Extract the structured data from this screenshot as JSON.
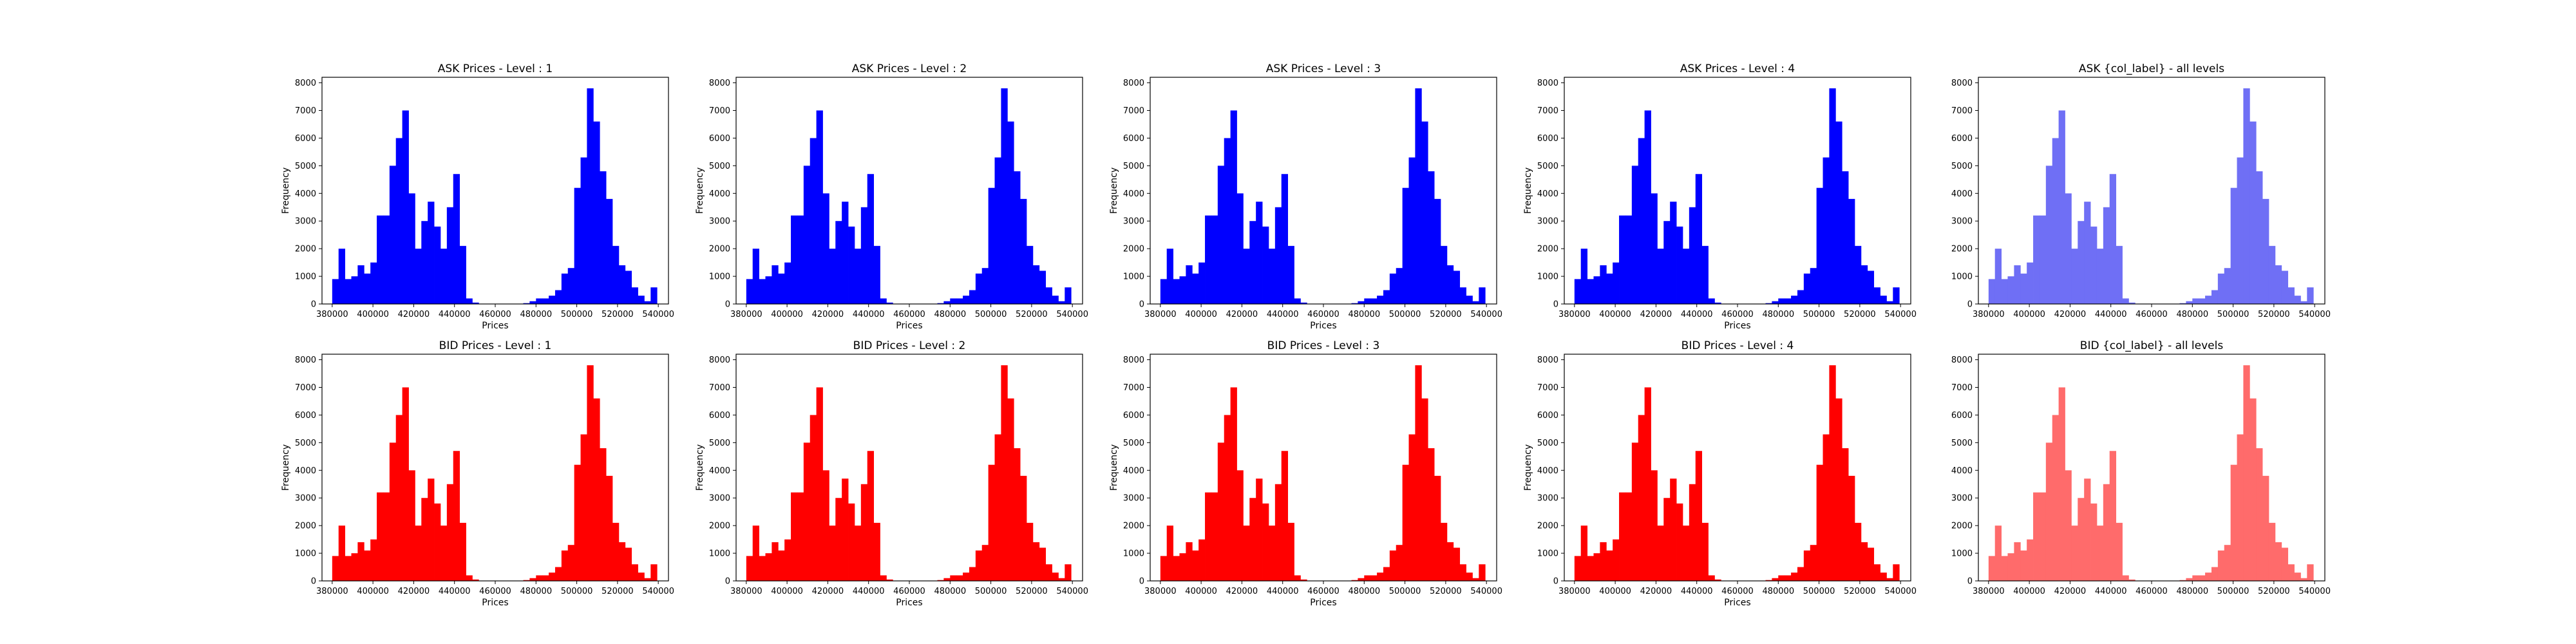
{
  "figure": {
    "background": "#ffffff",
    "colors": {
      "ask": "#0000ff",
      "bid": "#ff0000",
      "ask_all": "#6f6ff5",
      "bid_all": "#ff6b6b"
    }
  },
  "bin_width": 3125,
  "price_bins": [
    381562,
    384688,
    387812,
    390938,
    394062,
    397188,
    400312,
    403438,
    406562,
    409688,
    412812,
    415938,
    419062,
    422188,
    425312,
    428438,
    431562,
    434688,
    437812,
    440938,
    444062,
    447188,
    450312,
    453438,
    456562,
    459688,
    462812,
    465938,
    469062,
    472188,
    475312,
    478438,
    481562,
    484688,
    487812,
    490938,
    494062,
    497188,
    500312,
    503438,
    506562,
    509688,
    512812,
    515938,
    519062,
    522188,
    525312,
    528438,
    531562,
    534688,
    537812
  ],
  "frequencies": [
    900,
    2000,
    900,
    1000,
    1400,
    1100,
    1500,
    3200,
    3200,
    5000,
    6000,
    7000,
    4000,
    2000,
    3000,
    3700,
    2800,
    2000,
    3500,
    4700,
    2100,
    200,
    50,
    0,
    0,
    0,
    0,
    0,
    0,
    0,
    30,
    100,
    200,
    200,
    300,
    500,
    1100,
    1300,
    4200,
    5300,
    7800,
    6600,
    4800,
    3800,
    2100,
    1400,
    1200,
    600,
    300,
    100,
    600
  ],
  "chart_data": [
    {
      "type": "bar",
      "title": "ASK Prices - Level : 1",
      "xlabel": "Prices",
      "ylabel": "Frequency",
      "series_ref": "frequencies",
      "xlim": [
        375000,
        545000
      ],
      "ylim": [
        0,
        8200
      ],
      "xticks": [
        "380000",
        "400000",
        "420000",
        "440000",
        "460000",
        "480000",
        "500000",
        "520000",
        "540000"
      ],
      "yticks": [
        "0",
        "1000",
        "2000",
        "3000",
        "4000",
        "5000",
        "6000",
        "7000",
        "8000"
      ],
      "color": "ask"
    },
    {
      "type": "bar",
      "title": "ASK Prices - Level : 2",
      "xlabel": "Prices",
      "ylabel": "Frequency",
      "series_ref": "frequencies",
      "xlim": [
        375000,
        545000
      ],
      "ylim": [
        0,
        8200
      ],
      "xticks": [
        "380000",
        "400000",
        "420000",
        "440000",
        "460000",
        "480000",
        "500000",
        "520000",
        "540000"
      ],
      "yticks": [
        "0",
        "1000",
        "2000",
        "3000",
        "4000",
        "5000",
        "6000",
        "7000",
        "8000"
      ],
      "color": "ask"
    },
    {
      "type": "bar",
      "title": "ASK Prices - Level : 3",
      "xlabel": "Prices",
      "ylabel": "Frequency",
      "series_ref": "frequencies",
      "xlim": [
        375000,
        545000
      ],
      "ylim": [
        0,
        8200
      ],
      "xticks": [
        "380000",
        "400000",
        "420000",
        "440000",
        "460000",
        "480000",
        "500000",
        "520000",
        "540000"
      ],
      "yticks": [
        "0",
        "1000",
        "2000",
        "3000",
        "4000",
        "5000",
        "6000",
        "7000",
        "8000"
      ],
      "color": "ask"
    },
    {
      "type": "bar",
      "title": "ASK Prices - Level : 4",
      "xlabel": "Prices",
      "ylabel": "Frequency",
      "series_ref": "frequencies",
      "xlim": [
        375000,
        545000
      ],
      "ylim": [
        0,
        8200
      ],
      "xticks": [
        "380000",
        "400000",
        "420000",
        "440000",
        "460000",
        "480000",
        "500000",
        "520000",
        "540000"
      ],
      "yticks": [
        "0",
        "1000",
        "2000",
        "3000",
        "4000",
        "5000",
        "6000",
        "7000",
        "8000"
      ],
      "color": "ask"
    },
    {
      "type": "bar",
      "title": "ASK {col_label} - all levels",
      "xlabel": "",
      "ylabel": "",
      "series_ref": "frequencies",
      "xlim": [
        375000,
        545000
      ],
      "ylim": [
        0,
        8200
      ],
      "xticks": [
        "380000",
        "400000",
        "420000",
        "440000",
        "460000",
        "480000",
        "500000",
        "520000",
        "540000"
      ],
      "yticks": [
        "0",
        "1000",
        "2000",
        "3000",
        "4000",
        "5000",
        "6000",
        "7000",
        "8000"
      ],
      "color": "ask_all"
    },
    {
      "type": "bar",
      "title": "BID Prices - Level : 1",
      "xlabel": "Prices",
      "ylabel": "Frequency",
      "series_ref": "frequencies",
      "xlim": [
        375000,
        545000
      ],
      "ylim": [
        0,
        8200
      ],
      "xticks": [
        "380000",
        "400000",
        "420000",
        "440000",
        "460000",
        "480000",
        "500000",
        "520000",
        "540000"
      ],
      "yticks": [
        "0",
        "1000",
        "2000",
        "3000",
        "4000",
        "5000",
        "6000",
        "7000",
        "8000"
      ],
      "color": "bid"
    },
    {
      "type": "bar",
      "title": "BID Prices - Level : 2",
      "xlabel": "Prices",
      "ylabel": "Frequency",
      "series_ref": "frequencies",
      "xlim": [
        375000,
        545000
      ],
      "ylim": [
        0,
        8200
      ],
      "xticks": [
        "380000",
        "400000",
        "420000",
        "440000",
        "460000",
        "480000",
        "500000",
        "520000",
        "540000"
      ],
      "yticks": [
        "0",
        "1000",
        "2000",
        "3000",
        "4000",
        "5000",
        "6000",
        "7000",
        "8000"
      ],
      "color": "bid"
    },
    {
      "type": "bar",
      "title": "BID Prices - Level : 3",
      "xlabel": "Prices",
      "ylabel": "Frequency",
      "series_ref": "frequencies",
      "xlim": [
        375000,
        545000
      ],
      "ylim": [
        0,
        8200
      ],
      "xticks": [
        "380000",
        "400000",
        "420000",
        "440000",
        "460000",
        "480000",
        "500000",
        "520000",
        "540000"
      ],
      "yticks": [
        "0",
        "1000",
        "2000",
        "3000",
        "4000",
        "5000",
        "6000",
        "7000",
        "8000"
      ],
      "color": "bid"
    },
    {
      "type": "bar",
      "title": "BID Prices - Level : 4",
      "xlabel": "Prices",
      "ylabel": "Frequency",
      "series_ref": "frequencies",
      "xlim": [
        375000,
        545000
      ],
      "ylim": [
        0,
        8200
      ],
      "xticks": [
        "380000",
        "400000",
        "420000",
        "440000",
        "460000",
        "480000",
        "500000",
        "520000",
        "540000"
      ],
      "yticks": [
        "0",
        "1000",
        "2000",
        "3000",
        "4000",
        "5000",
        "6000",
        "7000",
        "8000"
      ],
      "color": "bid"
    },
    {
      "type": "bar",
      "title": "BID {col_label} - all levels",
      "xlabel": "",
      "ylabel": "",
      "series_ref": "frequencies",
      "xlim": [
        375000,
        545000
      ],
      "ylim": [
        0,
        8200
      ],
      "xticks": [
        "380000",
        "400000",
        "420000",
        "440000",
        "460000",
        "480000",
        "500000",
        "520000",
        "540000"
      ],
      "yticks": [
        "0",
        "1000",
        "2000",
        "3000",
        "4000",
        "5000",
        "6000",
        "7000",
        "8000"
      ],
      "color": "bid_all"
    }
  ]
}
